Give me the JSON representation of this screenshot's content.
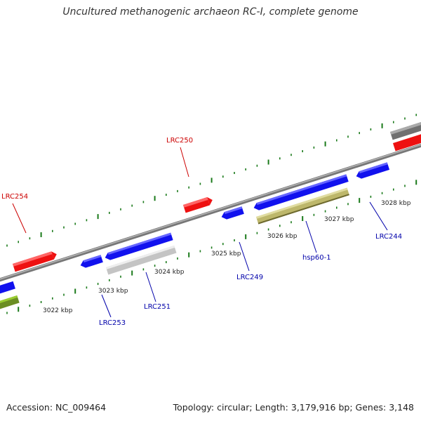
{
  "title": "Uncultured methanogenic archaeon RC-I, complete genome",
  "footer": {
    "accession": "Accession: NC_009464",
    "stats": "Topology: circular; Length: 3,179,916 bp; Genes: 3,148"
  },
  "colors": {
    "forward_label": "#cc0000",
    "reverse_label": "#0000aa",
    "forward_gene": "#ee0000",
    "reverse_gene": "#0000ee",
    "backbone": "#888888",
    "ticks": "#1a7a1a",
    "hsp_feature": "#bdb76b",
    "grey_feature": "#c0c0c0",
    "olive_feature": "#6b8e23"
  },
  "scale_labels": [
    "3022 kbp",
    "3023 kbp",
    "3024 kbp",
    "3025 kbp",
    "3026 kbp",
    "3027 kbp",
    "3028 kbp"
  ],
  "genes": [
    {
      "name": "LRC254",
      "strand": "forward"
    },
    {
      "name": "LRC250",
      "strand": "forward"
    },
    {
      "name": "LRC253",
      "strand": "reverse"
    },
    {
      "name": "LRC251",
      "strand": "reverse"
    },
    {
      "name": "LRC249",
      "strand": "reverse"
    },
    {
      "name": "hsp60-1",
      "strand": "reverse"
    },
    {
      "name": "LRC244",
      "strand": "reverse"
    }
  ]
}
